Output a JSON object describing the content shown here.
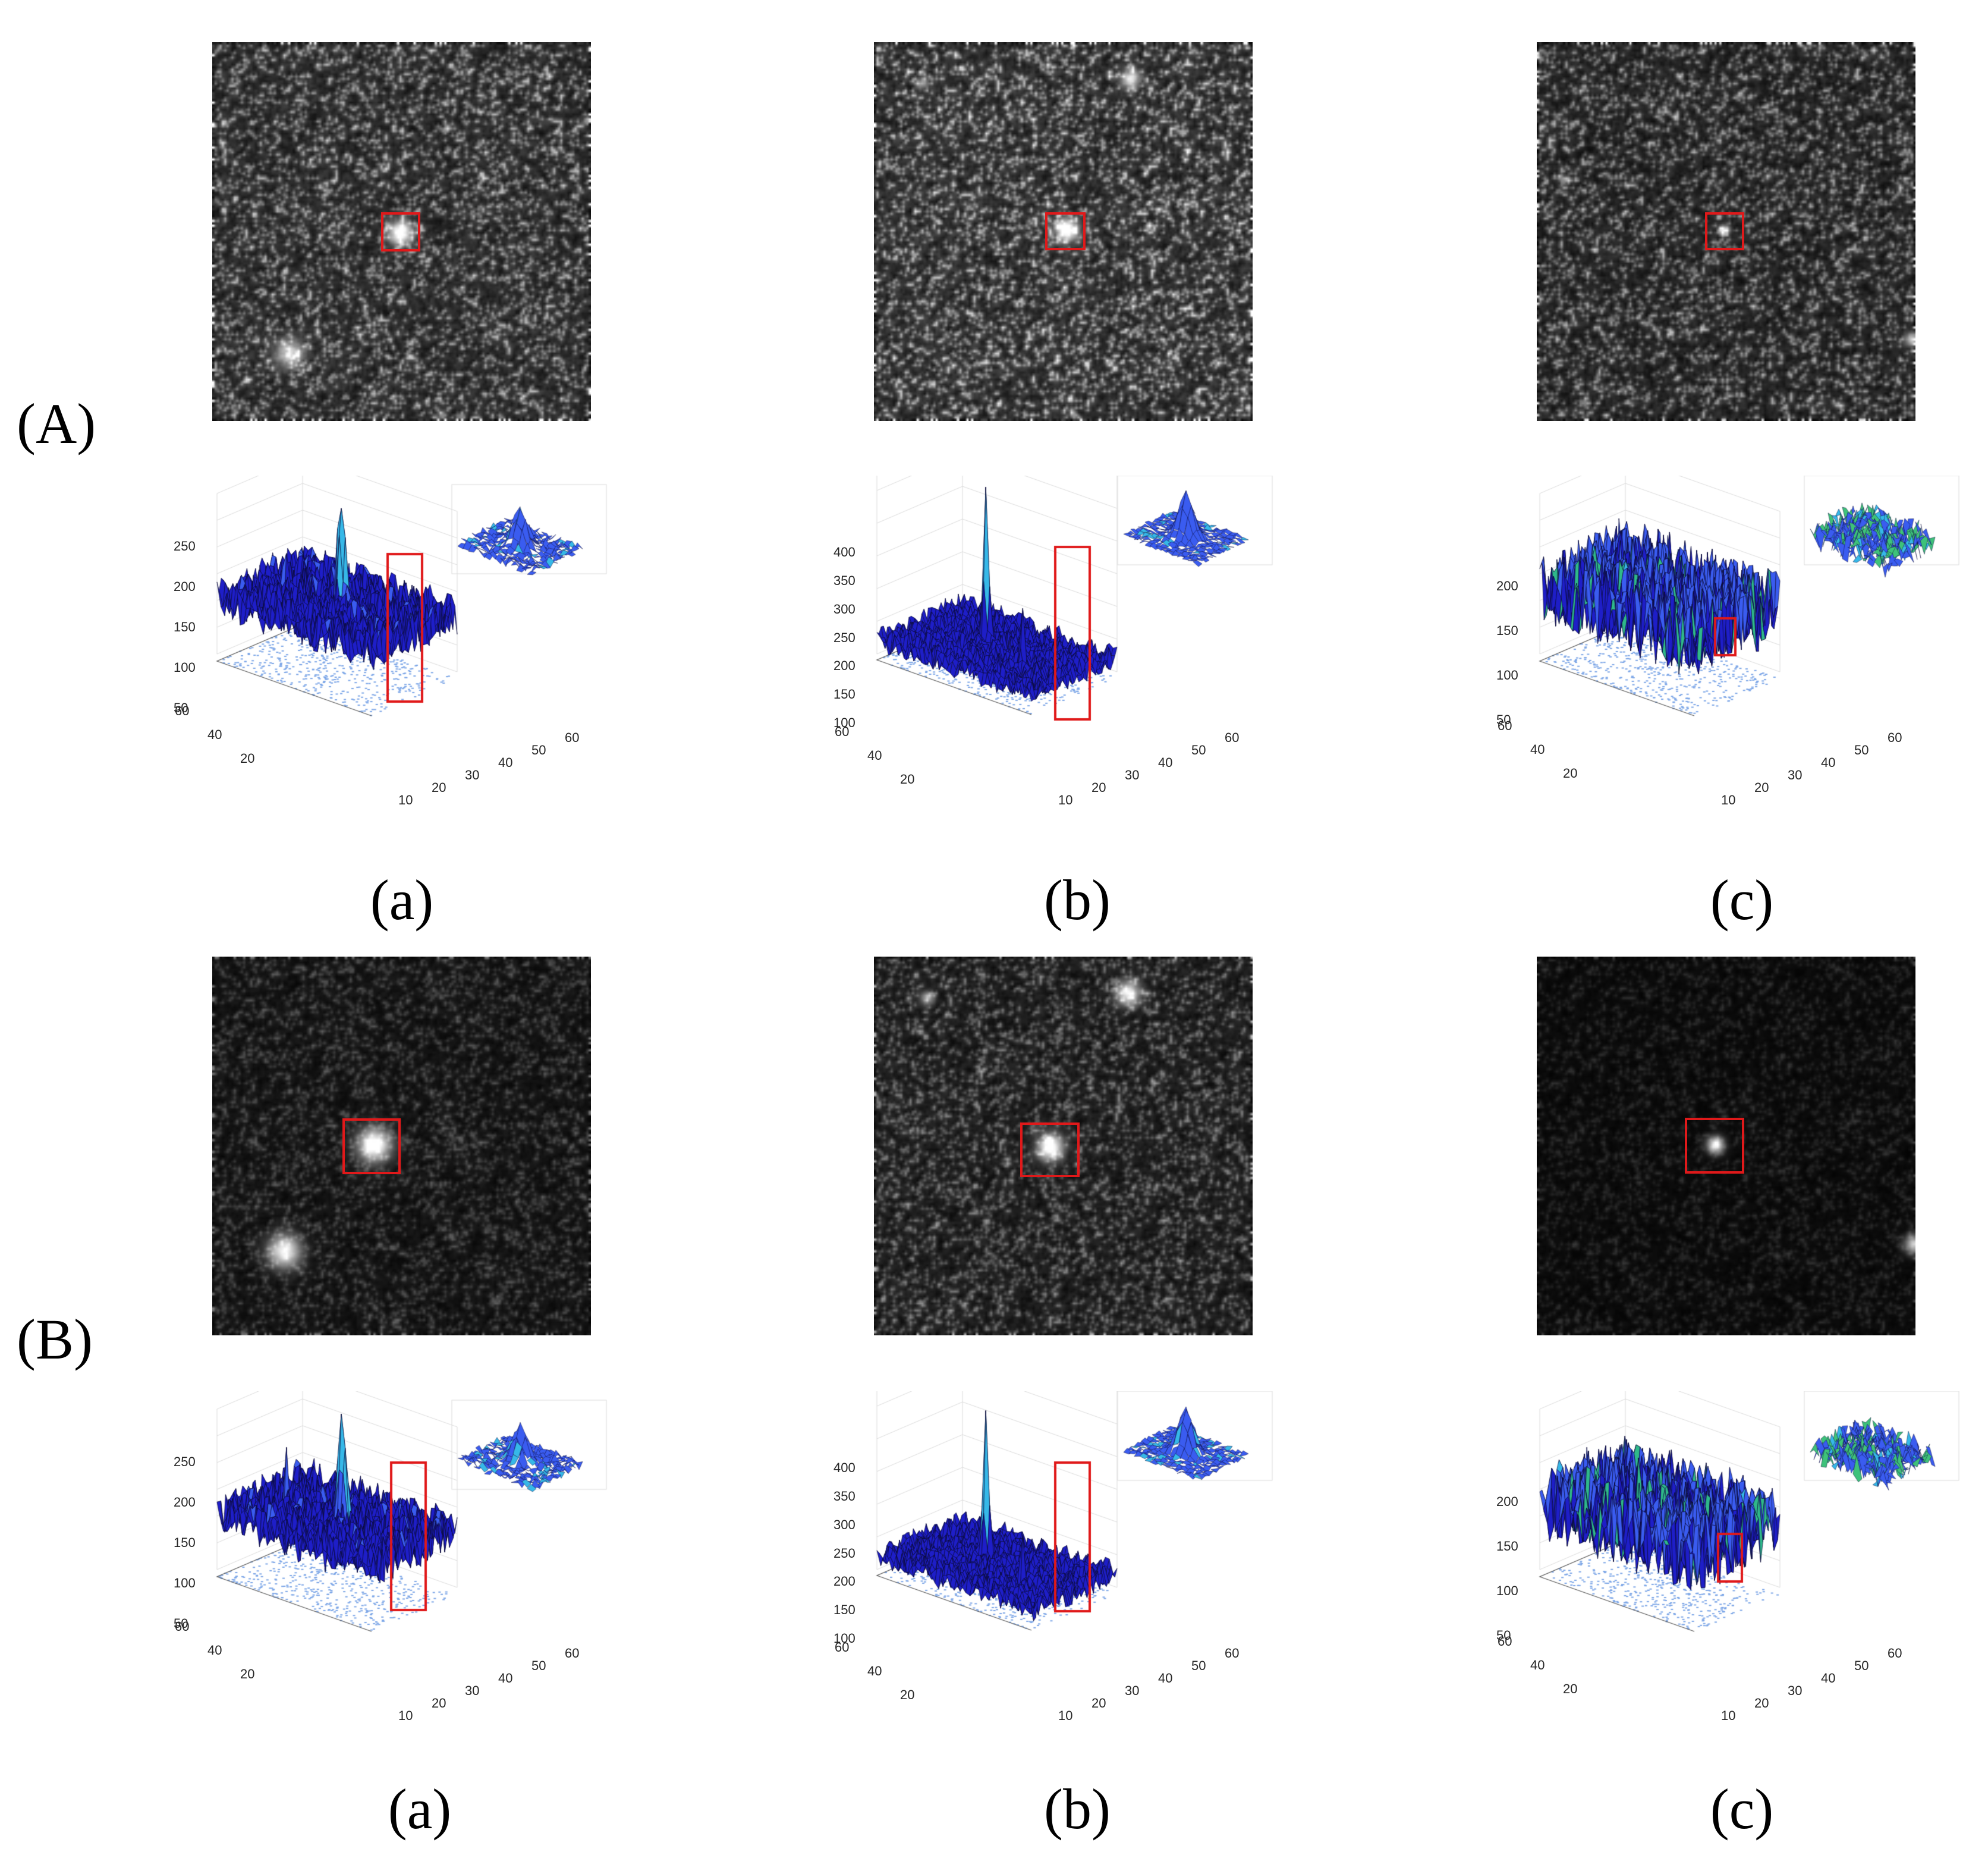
{
  "figure": {
    "rows": [
      {
        "label": "(A)",
        "panels": [
          {
            "sub_label": "(a)",
            "z_ticks": [
              "250",
              "200",
              "150",
              "100",
              "50"
            ],
            "x_ticks": [
              "10",
              "20",
              "30",
              "40",
              "50",
              "60"
            ],
            "y_ticks": [
              "60",
              "40",
              "20"
            ]
          },
          {
            "sub_label": "(b)",
            "z_ticks": [
              "400",
              "350",
              "300",
              "250",
              "200",
              "150",
              "100"
            ],
            "x_ticks": [
              "10",
              "20",
              "30",
              "40",
              "50",
              "60"
            ],
            "y_ticks": [
              "60",
              "40",
              "20"
            ]
          },
          {
            "sub_label": "(c)",
            "z_ticks": [
              "200",
              "150",
              "100",
              "50"
            ],
            "x_ticks": [
              "10",
              "20",
              "30",
              "40",
              "50",
              "60"
            ],
            "y_ticks": [
              "60",
              "40",
              "20"
            ]
          }
        ]
      },
      {
        "label": "(B)",
        "panels": [
          {
            "sub_label": "(a)",
            "z_ticks": [
              "250",
              "200",
              "150",
              "100",
              "50"
            ],
            "x_ticks": [
              "10",
              "20",
              "30",
              "40",
              "50",
              "60"
            ],
            "y_ticks": [
              "60",
              "40",
              "20"
            ]
          },
          {
            "sub_label": "(b)",
            "z_ticks": [
              "400",
              "350",
              "300",
              "250",
              "200",
              "150",
              "100"
            ],
            "x_ticks": [
              "10",
              "20",
              "30",
              "40",
              "50",
              "60"
            ],
            "y_ticks": [
              "60",
              "40",
              "20"
            ]
          },
          {
            "sub_label": "(c)",
            "z_ticks": [
              "200",
              "150",
              "100",
              "50"
            ],
            "x_ticks": [
              "10",
              "20",
              "30",
              "40",
              "50",
              "60"
            ],
            "y_ticks": [
              "60",
              "40",
              "20"
            ]
          }
        ]
      }
    ]
  },
  "colors": {
    "detection_box": "#e0191a",
    "surface_dark": "#1e1ec8",
    "surface_mid": "#3a5cf0",
    "surface_peak": "#36b8e8",
    "contour": "#7fa8e8",
    "grid": "#dcdcdc"
  }
}
